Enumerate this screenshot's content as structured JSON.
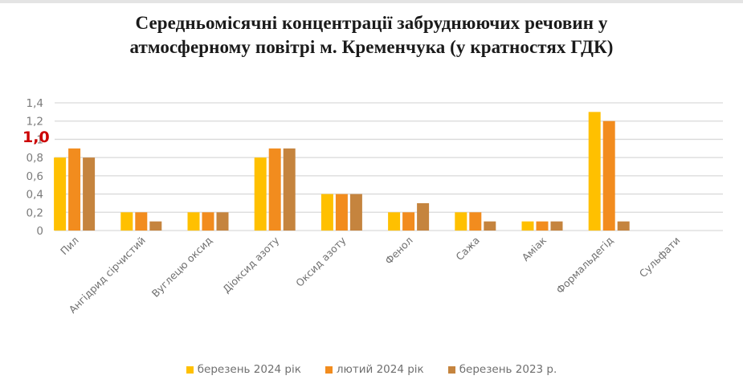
{
  "chart_data": {
    "type": "bar",
    "title": [
      "Середньомісячні концентрації забруднюючих речовин у",
      "атмосферному повітрі м. Кременчука (у кратностях ГДК)"
    ],
    "xlabel": "",
    "ylabel": "",
    "ylim": [
      0,
      1.4
    ],
    "yticks": [
      "0",
      "0,2",
      "0,4",
      "0,6",
      "0,8",
      "1",
      "1,2",
      "1,4"
    ],
    "ytick_values": [
      0,
      0.2,
      0.4,
      0.6,
      0.8,
      1.0,
      1.2,
      1.4
    ],
    "grid": true,
    "legend_position": "bottom",
    "categories": [
      "Пил",
      "Ангідрид сірчистий",
      "Вуглецю оксид",
      "Діоксид азоту",
      "Оксид азоту",
      "Фенол",
      "Сажа",
      "Аміак",
      "Формальдегід",
      "Сульфати"
    ],
    "series": [
      {
        "name": "березень 2024 рік",
        "color": "#FFC000",
        "values": [
          0.8,
          0.2,
          0.2,
          0.8,
          0.4,
          0.2,
          0.2,
          0.1,
          1.3,
          0
        ]
      },
      {
        "name": "лютий 2024 рік",
        "color": "#F28C1E",
        "values": [
          0.9,
          0.2,
          0.2,
          0.9,
          0.4,
          0.2,
          0.2,
          0.1,
          1.2,
          0
        ]
      },
      {
        "name": "березень 2023 р.",
        "color": "#C5843E",
        "values": [
          0.8,
          0.1,
          0.2,
          0.9,
          0.4,
          0.3,
          0.1,
          0.1,
          0.1,
          0
        ]
      }
    ],
    "annotations": [
      {
        "text": "1,0",
        "color": "#CC0000",
        "at_y": 1.0,
        "note": "red bold overlay on y-axis tick"
      }
    ]
  },
  "overlay": {
    "text": "1,0",
    "color": "#CC0000"
  },
  "gridline_color": "#d9d9d9"
}
